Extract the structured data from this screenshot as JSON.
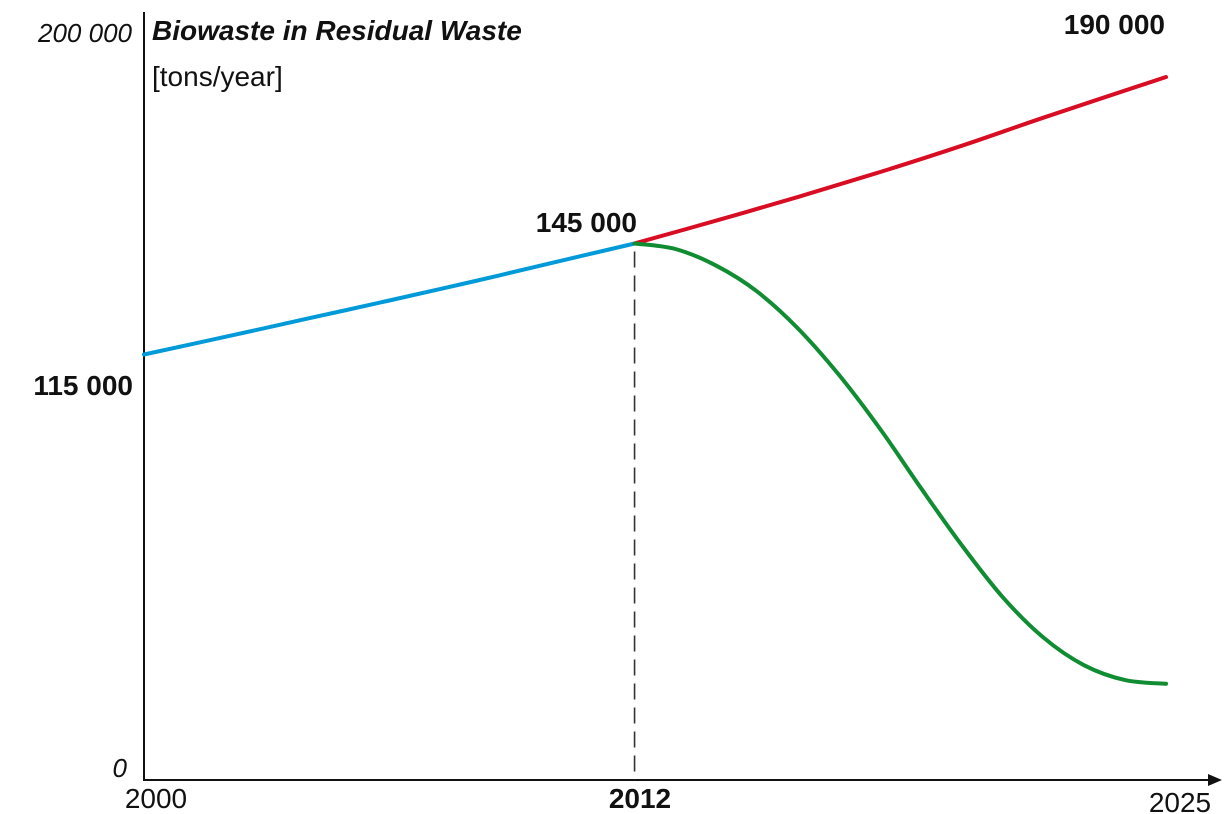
{
  "chart_data": {
    "type": "line",
    "title": "Biowaste in Residual Waste",
    "ylabel": "[tons/year]",
    "xlim": [
      2000,
      2025
    ],
    "ylim": [
      0,
      200000
    ],
    "x_tick_labels": [
      "2000",
      "2012",
      "2025"
    ],
    "y_tick_labels": [
      "0",
      "200 000"
    ],
    "annotations": [
      "115 000",
      "145 000",
      "190 000"
    ],
    "grid": false,
    "legend": "none",
    "series": [
      {
        "color": "#009ad9",
        "x": [
          2000,
          2002,
          2004,
          2006,
          2008,
          2010,
          2012
        ],
        "y": [
          115000,
          119800,
          124700,
          129600,
          134600,
          139800,
          145000
        ]
      },
      {
        "color": "#d80c22",
        "x": [
          2012,
          2014,
          2016,
          2018,
          2020,
          2022,
          2025
        ],
        "y": [
          145000,
          151200,
          157600,
          164300,
          171400,
          179000,
          190000
        ]
      },
      {
        "color": "#108c32",
        "x": [
          2012,
          2013,
          2014,
          2015,
          2016,
          2017,
          2018,
          2019,
          2020,
          2021,
          2022,
          2023,
          2024,
          2025
        ],
        "y": [
          145000,
          143500,
          139000,
          132000,
          122000,
          109500,
          95000,
          79000,
          63500,
          49500,
          38500,
          31000,
          27000,
          26000
        ]
      }
    ]
  }
}
